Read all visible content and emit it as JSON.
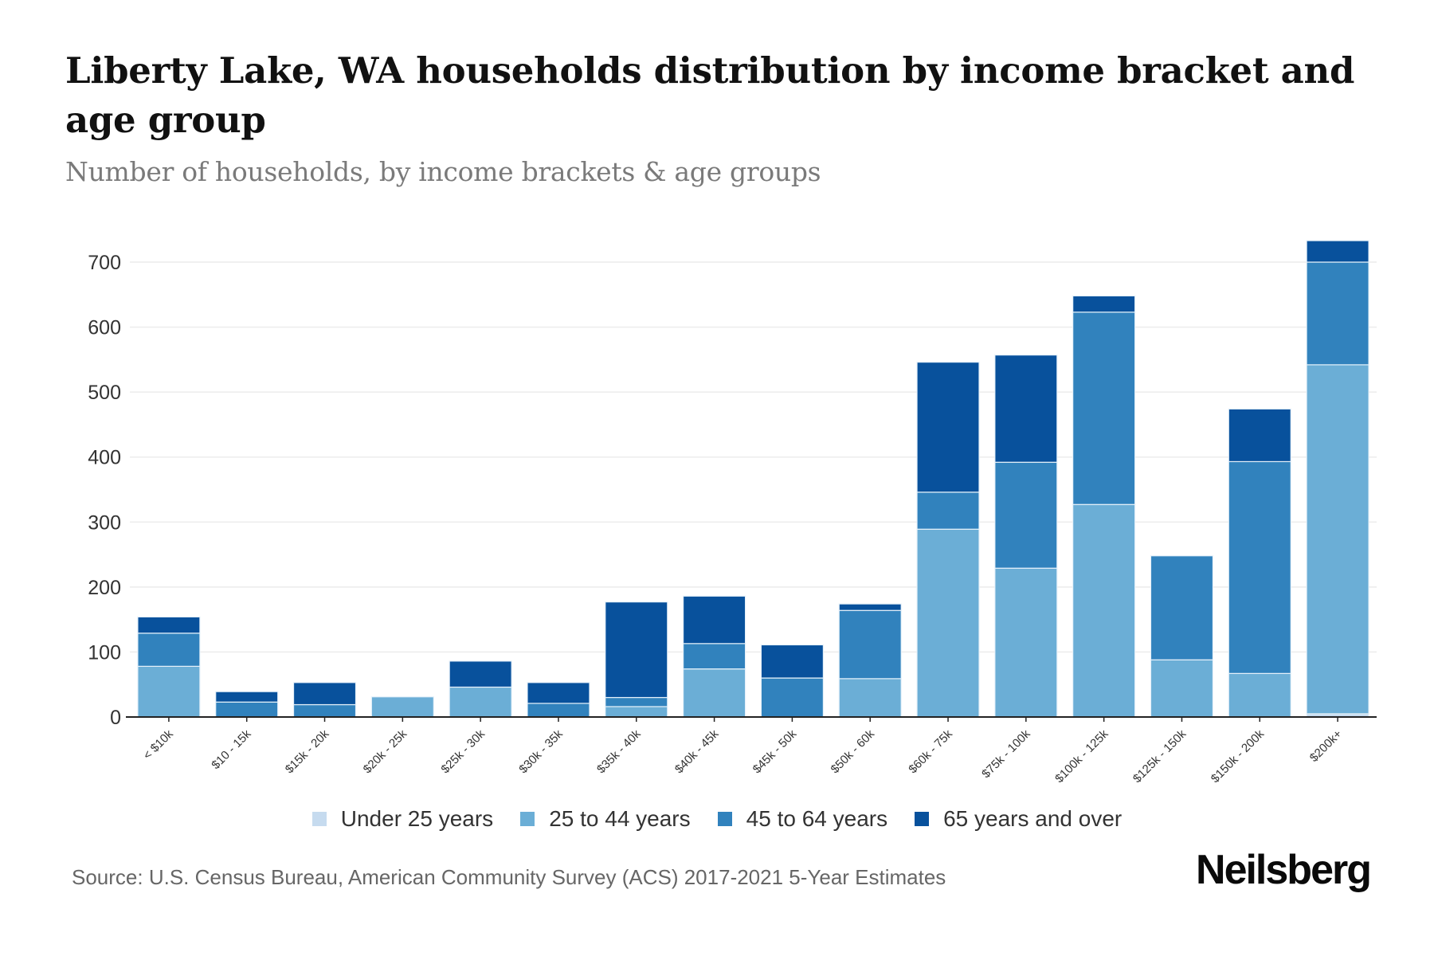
{
  "header": {
    "title": "Liberty Lake, WA households distribution by income bracket and age group",
    "subtitle": "Number of households, by income brackets & age groups"
  },
  "footer": {
    "source": "Source: U.S. Census Bureau, American Community Survey (ACS) 2017-2021 5-Year Estimates",
    "brand": "Neilsberg"
  },
  "legend": [
    {
      "label": "Under 25 years",
      "color": "#c6dbef"
    },
    {
      "label": "25 to 44 years",
      "color": "#6baed6"
    },
    {
      "label": "45 to 64 years",
      "color": "#3182bd"
    },
    {
      "label": "65 years and over",
      "color": "#08519c"
    }
  ],
  "chart_data": {
    "type": "bar",
    "stacked": true,
    "title": "Liberty Lake, WA households distribution by income bracket and age group",
    "subtitle": "Number of households, by income brackets & age groups",
    "xlabel": "",
    "ylabel": "",
    "ylim": [
      0,
      700
    ],
    "yticks": [
      0,
      100,
      200,
      300,
      400,
      500,
      600,
      700
    ],
    "grid": true,
    "legend_position": "bottom",
    "categories": [
      "< $10k",
      "$10 - 15k",
      "$15k - 20k",
      "$20k - 25k",
      "$25k - 30k",
      "$30k - 35k",
      "$35k - 40k",
      "$40k - 45k",
      "$45k - 50k",
      "$50k - 60k",
      "$60k - 75k",
      "$75k - 100k",
      "$100k - 125k",
      "$125k - 150k",
      "$150k - 200k",
      "$200k+"
    ],
    "series": [
      {
        "name": "Under 25 years",
        "color": "#c6dbef",
        "values": [
          0,
          0,
          0,
          0,
          0,
          0,
          0,
          0,
          0,
          0,
          0,
          0,
          0,
          0,
          0,
          5
        ]
      },
      {
        "name": "25 to 44 years",
        "color": "#6baed6",
        "values": [
          78,
          0,
          0,
          31,
          46,
          0,
          16,
          74,
          0,
          59,
          289,
          229,
          327,
          88,
          67,
          537
        ]
      },
      {
        "name": "45 to 64 years",
        "color": "#3182bd",
        "values": [
          51,
          23,
          19,
          0,
          0,
          21,
          14,
          39,
          60,
          105,
          57,
          163,
          296,
          160,
          326,
          158
        ]
      },
      {
        "name": "65 years and over",
        "color": "#08519c",
        "values": [
          25,
          16,
          34,
          0,
          40,
          32,
          147,
          73,
          51,
          10,
          200,
          165,
          25,
          0,
          81,
          33
        ]
      }
    ]
  }
}
